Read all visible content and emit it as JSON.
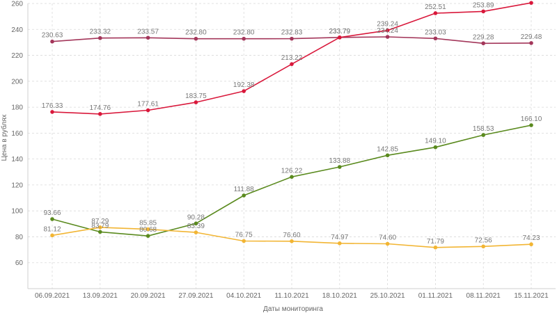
{
  "chart_data": {
    "type": "line",
    "xlabel": "Даты мониторинга",
    "ylabel": "Цена в рублях",
    "ylim": [
      40,
      260
    ],
    "yticks": [
      60,
      80,
      100,
      120,
      140,
      160,
      180,
      200,
      220,
      240,
      260
    ],
    "grid": true,
    "categories": [
      "06.09.2021",
      "13.09.2021",
      "20.09.2021",
      "27.09.2021",
      "04.10.2021",
      "11.10.2021",
      "18.10.2021",
      "25.10.2021",
      "01.11.2021",
      "08.11.2021",
      "15.11.2021"
    ],
    "series": [
      {
        "color": "#a3365a",
        "values": [
          230.63,
          233.32,
          233.57,
          232.8,
          232.8,
          232.83,
          233.79,
          234.24,
          233.03,
          229.28,
          229.48
        ]
      },
      {
        "color": "#d9183b",
        "values": [
          176.33,
          174.76,
          177.61,
          183.75,
          192.38,
          213.22,
          233.79,
          239.24,
          252.51,
          253.89,
          260.47
        ]
      },
      {
        "color": "#5a8a1e",
        "values": [
          93.66,
          83.79,
          80.68,
          90.28,
          111.88,
          126.22,
          133.88,
          142.85,
          149.1,
          158.53,
          166.1
        ]
      },
      {
        "color": "#f2b533",
        "values": [
          81.12,
          87.29,
          85.85,
          83.39,
          76.75,
          76.6,
          74.97,
          74.6,
          71.79,
          72.56,
          74.23
        ]
      }
    ]
  }
}
